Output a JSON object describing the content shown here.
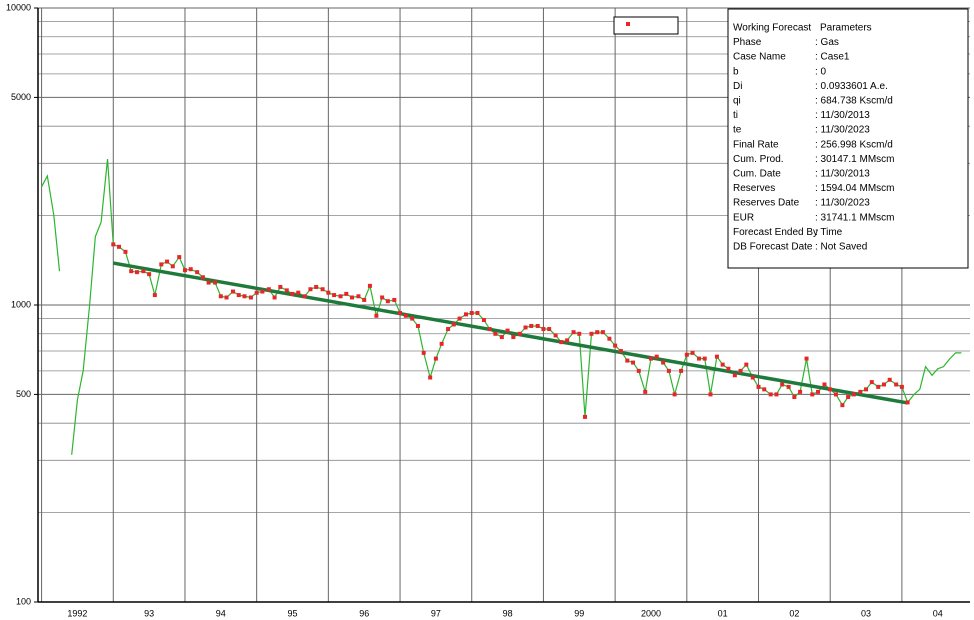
{
  "chart_data": {
    "type": "line",
    "ylog": true,
    "grid": true,
    "xlim": [
      1991.95,
      2004.95
    ],
    "ylim": [
      100,
      10000
    ],
    "yticks": [
      100,
      500,
      1000,
      5000,
      10000
    ],
    "y_minor_grid": [
      200,
      300,
      400,
      600,
      700,
      800,
      900,
      2000,
      3000,
      4000,
      6000,
      7000,
      8000,
      9000
    ],
    "xticks": [
      1992,
      {
        "value": 1993,
        "label": "93"
      },
      {
        "value": 1994,
        "label": "94"
      },
      {
        "value": 1995,
        "label": "95"
      },
      {
        "value": 1996,
        "label": "96"
      },
      {
        "value": 1997,
        "label": "97"
      },
      {
        "value": 1998,
        "label": "98"
      },
      {
        "value": 1999,
        "label": "99"
      },
      2000,
      {
        "value": 2001,
        "label": "01"
      },
      {
        "value": 2002,
        "label": "02"
      },
      {
        "value": 2003,
        "label": "03"
      },
      {
        "value": 2004,
        "label": "04"
      }
    ],
    "series": [
      {
        "color": "#2db52d",
        "marker_color": "#e8262a",
        "marker_xlim": [
          1993.0,
          2004.08
        ],
        "x": [
          1992.0,
          1992.08,
          1992.17,
          1992.25,
          1992.33,
          1992.42,
          1992.5,
          1992.58,
          1992.67,
          1992.75,
          1992.83,
          1992.92,
          1993.0,
          1993.08,
          1993.17,
          1993.25,
          1993.33,
          1993.42,
          1993.5,
          1993.58,
          1993.67,
          1993.75,
          1993.83,
          1993.92,
          1994.0,
          1994.08,
          1994.17,
          1994.25,
          1994.33,
          1994.42,
          1994.5,
          1994.58,
          1994.67,
          1994.75,
          1994.83,
          1994.92,
          1995.0,
          1995.08,
          1995.17,
          1995.25,
          1995.33,
          1995.42,
          1995.5,
          1995.58,
          1995.67,
          1995.75,
          1995.83,
          1995.92,
          1996.0,
          1996.08,
          1996.17,
          1996.25,
          1996.33,
          1996.42,
          1996.5,
          1996.58,
          1996.67,
          1996.75,
          1996.83,
          1996.92,
          1997.0,
          1997.08,
          1997.17,
          1997.25,
          1997.33,
          1997.42,
          1997.5,
          1997.58,
          1997.67,
          1997.75,
          1997.83,
          1997.92,
          1998.0,
          1998.08,
          1998.17,
          1998.25,
          1998.33,
          1998.42,
          1998.5,
          1998.58,
          1998.67,
          1998.75,
          1998.83,
          1998.92,
          1999.0,
          1999.08,
          1999.17,
          1999.25,
          1999.33,
          1999.42,
          1999.5,
          1999.58,
          1999.67,
          1999.75,
          1999.83,
          1999.92,
          2000.0,
          2000.08,
          2000.17,
          2000.25,
          2000.33,
          2000.42,
          2000.5,
          2000.58,
          2000.67,
          2000.75,
          2000.83,
          2000.92,
          2001.0,
          2001.08,
          2001.17,
          2001.25,
          2001.33,
          2001.42,
          2001.5,
          2001.58,
          2001.67,
          2001.75,
          2001.83,
          2001.92,
          2002.0,
          2002.08,
          2002.17,
          2002.25,
          2002.33,
          2002.42,
          2002.5,
          2002.58,
          2002.67,
          2002.75,
          2002.83,
          2002.92,
          2003.0,
          2003.08,
          2003.17,
          2003.25,
          2003.33,
          2003.42,
          2003.5,
          2003.58,
          2003.67,
          2003.75,
          2003.83,
          2003.92,
          2004.0,
          2004.08,
          2004.17,
          2004.25,
          2004.33,
          2004.42,
          2004.5,
          2004.58,
          2004.67,
          2004.75,
          2004.83
        ],
        "values": [
          2500,
          2720,
          2010,
          1300,
          null,
          313,
          480,
          600,
          1000,
          1700,
          1900,
          3100,
          1600,
          1570,
          1510,
          1300,
          1290,
          1300,
          1270,
          1080,
          1370,
          1400,
          1350,
          1450,
          1310,
          1320,
          1290,
          1240,
          1190,
          1190,
          1070,
          1060,
          1110,
          1080,
          1070,
          1060,
          1100,
          1110,
          1130,
          1060,
          1150,
          1120,
          1090,
          1100,
          1070,
          1130,
          1150,
          1130,
          1100,
          1080,
          1070,
          1090,
          1060,
          1070,
          1040,
          1160,
          920,
          1060,
          1030,
          1040,
          940,
          920,
          900,
          850,
          690,
          570,
          660,
          740,
          830,
          860,
          900,
          930,
          940,
          940,
          890,
          830,
          800,
          780,
          820,
          780,
          800,
          840,
          850,
          850,
          830,
          830,
          790,
          750,
          760,
          810,
          800,
          420,
          800,
          810,
          810,
          770,
          730,
          700,
          650,
          640,
          600,
          510,
          660,
          670,
          640,
          600,
          500,
          600,
          680,
          690,
          660,
          660,
          500,
          670,
          630,
          610,
          580,
          600,
          630,
          570,
          530,
          520,
          500,
          500,
          540,
          530,
          490,
          510,
          660,
          500,
          510,
          540,
          520,
          500,
          460,
          490,
          500,
          510,
          520,
          550,
          530,
          540,
          560,
          540,
          530,
          470,
          500,
          520,
          620,
          580,
          610,
          620,
          660,
          690,
          690
        ]
      }
    ],
    "forecast": {
      "color": "#1e7a3a",
      "x": [
        1993.0,
        2004.08
      ],
      "values": [
        1384,
        468
      ]
    },
    "parameters": {
      "header": [
        "Working Forecast",
        "Parameters"
      ],
      "rows": [
        [
          "Phase",
          ": Gas"
        ],
        [
          "Case Name",
          ": Case1"
        ],
        [
          "b",
          ": 0"
        ],
        [
          "Di",
          ": 0.0933601 A.e."
        ],
        [
          "qi",
          ": 684.738 Kscm/d"
        ],
        [
          "ti",
          ": 11/30/2013"
        ],
        [
          "te",
          ": 11/30/2023"
        ],
        [
          "Final Rate",
          ": 256.998 Kscm/d"
        ],
        [
          "Cum. Prod.",
          ": 30147.1 MMscm"
        ],
        [
          "Cum. Date",
          ": 11/30/2013"
        ],
        [
          "Reserves",
          ": 1594.04 MMscm"
        ],
        [
          "Reserves Date",
          ": 11/30/2023"
        ],
        [
          "EUR",
          ": 31741.1 MMscm"
        ],
        [
          "Forecast Ended By",
          ": Time"
        ],
        [
          "DB Forecast Date",
          ": Not Saved"
        ]
      ]
    }
  }
}
